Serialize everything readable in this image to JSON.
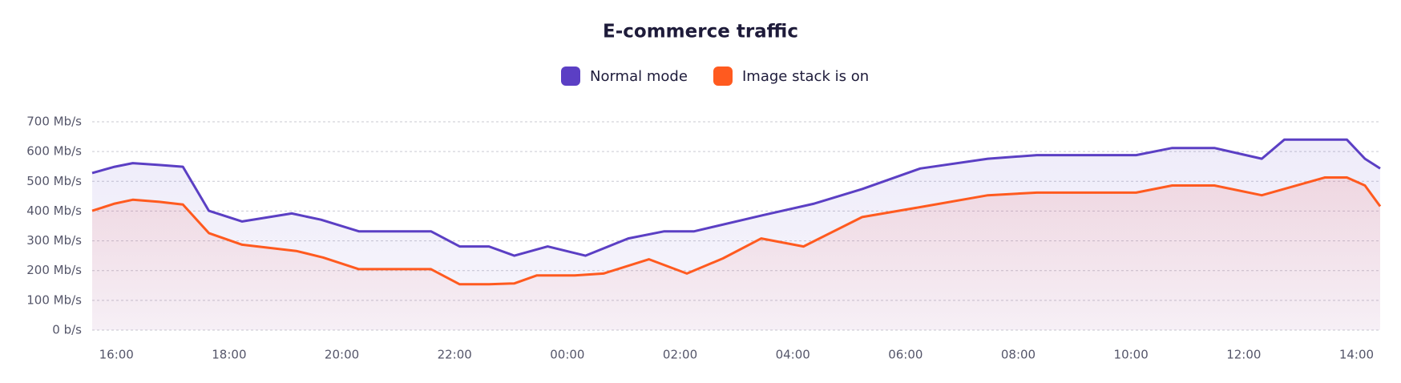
{
  "chart_data": {
    "type": "line",
    "title": "E-commerce traffic",
    "series": [
      {
        "name": "Normal mode",
        "color": "#5b3fc4",
        "x": [
          15.57,
          15.97,
          16.29,
          16.76,
          17.18,
          17.64,
          18.23,
          19.11,
          19.63,
          20.3,
          21.58,
          22.09,
          22.61,
          23.06,
          23.65,
          24.32,
          25.08,
          25.72,
          26.25,
          27.47,
          28.38,
          29.23,
          30.26,
          31.46,
          32.33,
          34.09,
          34.73,
          35.48,
          36.32,
          36.72,
          37.83,
          38.15,
          38.42
        ],
        "values": [
          528,
          549,
          561,
          555,
          549,
          401,
          365,
          392,
          371,
          332,
          332,
          281,
          281,
          250,
          281,
          250,
          308,
          332,
          332,
          386,
          425,
          474,
          543,
          576,
          588,
          588,
          612,
          612,
          576,
          640,
          640,
          576,
          543
        ]
      },
      {
        "name": "Image stack is on",
        "color": "#ff5a1f",
        "x": [
          15.57,
          15.97,
          16.29,
          16.76,
          17.18,
          17.64,
          18.23,
          19.19,
          19.67,
          20.3,
          21.58,
          22.09,
          22.61,
          23.06,
          23.46,
          24.13,
          24.64,
          25.45,
          26.12,
          26.76,
          27.44,
          28.19,
          29.23,
          30.34,
          31.46,
          32.33,
          34.09,
          34.73,
          35.48,
          36.32,
          37.44,
          37.83,
          38.15,
          38.42
        ],
        "values": [
          401,
          425,
          438,
          431,
          422,
          326,
          287,
          266,
          244,
          205,
          205,
          154,
          154,
          157,
          184,
          184,
          190,
          238,
          190,
          241,
          308,
          281,
          380,
          416,
          453,
          462,
          462,
          486,
          486,
          453,
          513,
          513,
          486,
          416
        ]
      }
    ],
    "xlim": [
      15.57,
      38.42
    ],
    "xticks": [
      {
        "value": 16,
        "label": "16:00"
      },
      {
        "value": 18,
        "label": "18:00"
      },
      {
        "value": 20,
        "label": "20:00"
      },
      {
        "value": 22,
        "label": "22:00"
      },
      {
        "value": 24,
        "label": "00:00"
      },
      {
        "value": 26,
        "label": "02:00"
      },
      {
        "value": 28,
        "label": "04:00"
      },
      {
        "value": 30,
        "label": "06:00"
      },
      {
        "value": 32,
        "label": "08:00"
      },
      {
        "value": 34,
        "label": "10:00"
      },
      {
        "value": 36,
        "label": "12:00"
      },
      {
        "value": 38,
        "label": "14:00"
      }
    ],
    "ylim": [
      0,
      700
    ],
    "yticks": [
      {
        "value": 0,
        "label": "0 b/s"
      },
      {
        "value": 100,
        "label": "100 Mb/s"
      },
      {
        "value": 200,
        "label": "200 Mb/s"
      },
      {
        "value": 300,
        "label": "300 Mb/s"
      },
      {
        "value": 400,
        "label": "400 Mb/s"
      },
      {
        "value": 500,
        "label": "500 Mb/s"
      },
      {
        "value": 600,
        "label": "600 Mb/s"
      },
      {
        "value": 700,
        "label": "700 Mb/s"
      }
    ],
    "grid": true,
    "legend": "top"
  }
}
